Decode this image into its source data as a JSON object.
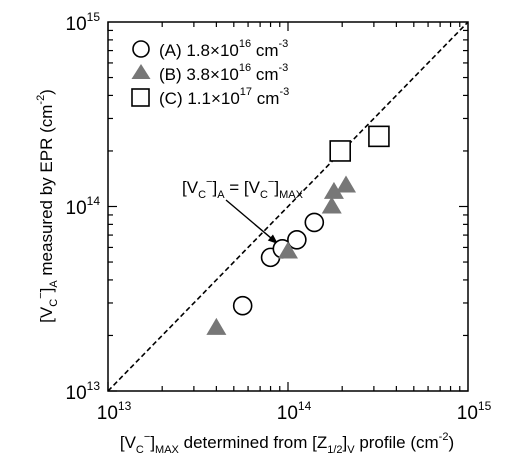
{
  "chart_data": {
    "type": "scatter",
    "title": "",
    "xlabel": {
      "prefix": "[V",
      "sub1": "C",
      "sup1": "−",
      "mid": "]",
      "sub2": "MAX",
      "rest": " determined from [Z",
      "sub3": "1/2",
      "rest2": "]",
      "sub4": "V",
      "rest3": " profile (cm",
      "sup2": "-2",
      "end": ")"
    },
    "ylabel": {
      "prefix": "[V",
      "sub1": "C",
      "sup1": "−",
      "mid": "]",
      "sub2": "A",
      "rest": " measured by EPR (cm",
      "sup2": "-2",
      "end": ")"
    },
    "x_scale": "log",
    "y_scale": "log",
    "xlim": [
      10000000000000.0,
      1000000000000000.0
    ],
    "ylim": [
      10000000000000.0,
      1000000000000000.0
    ],
    "x_ticks": [
      {
        "value": 10000000000000.0,
        "base": "10",
        "exp": "13"
      },
      {
        "value": 100000000000000.0,
        "base": "10",
        "exp": "14"
      },
      {
        "value": 1000000000000000.0,
        "base": "10",
        "exp": "15"
      }
    ],
    "y_ticks": [
      {
        "value": 10000000000000.0,
        "base": "10",
        "exp": "13"
      },
      {
        "value": 100000000000000.0,
        "base": "10",
        "exp": "14"
      },
      {
        "value": 1000000000000000.0,
        "base": "10",
        "exp": "15"
      }
    ],
    "grid": false,
    "legend_position": "top-left",
    "series": [
      {
        "name": {
          "label": "(A) 1.8×10",
          "exp": "16",
          "unit": " cm",
          "unit_exp": "-3"
        },
        "marker": "circle-open",
        "color": "#000000",
        "x": [
          56000000000000.0,
          80000000000000.0,
          93000000000000.0,
          112000000000000.0,
          140000000000000.0
        ],
        "y": [
          29000000000000.0,
          53000000000000.0,
          59000000000000.0,
          66000000000000.0,
          82000000000000.0
        ]
      },
      {
        "name": {
          "label": "(B) 3.8×10",
          "exp": "16",
          "unit": " cm",
          "unit_exp": "-3"
        },
        "marker": "triangle-filled",
        "color": "#777777",
        "x": [
          40000000000000.0,
          100000000000000.0,
          175000000000000.0,
          180000000000000.0,
          210000000000000.0
        ],
        "y": [
          22000000000000.0,
          57000000000000.0,
          100000000000000.0,
          120000000000000.0,
          130000000000000.0
        ]
      },
      {
        "name": {
          "label": "(C) 1.1×10",
          "exp": "17",
          "unit": " cm",
          "unit_exp": "-3"
        },
        "marker": "square-open",
        "color": "#000000",
        "x": [
          195000000000000.0,
          320000000000000.0
        ],
        "y": [
          200000000000000.0,
          240000000000000.0
        ]
      }
    ],
    "reference_line": {
      "style": "dashed",
      "from": [
        10000000000000.0,
        10000000000000.0
      ],
      "to": [
        1000000000000000.0,
        1000000000000000.0
      ]
    },
    "annotation": {
      "p1": "[V",
      "s1": "C",
      "u1": "−",
      "p2": "]",
      "s2": "A",
      "p3": " = [V",
      "s3": "C",
      "u3": "−",
      "p4": "]",
      "s4": "MAX",
      "arrow_to": [
        100000000000000.0,
        56000000000000.0
      ]
    }
  }
}
